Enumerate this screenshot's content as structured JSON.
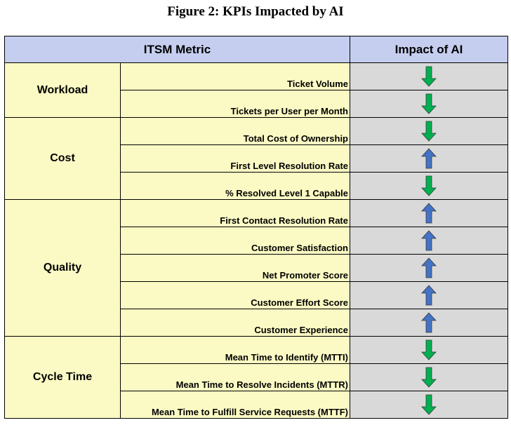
{
  "title": "Figure 2: KPIs Impacted by AI",
  "columns": {
    "metric": "ITSM Metric",
    "impact": "Impact of AI"
  },
  "groups": [
    {
      "name": "Workload",
      "rows": [
        {
          "metric": "Ticket Volume",
          "impact": "down"
        },
        {
          "metric": "Tickets per User per Month",
          "impact": "down"
        }
      ]
    },
    {
      "name": "Cost",
      "rows": [
        {
          "metric": "Total Cost of Ownership",
          "impact": "down"
        },
        {
          "metric": "First Level Resolution Rate",
          "impact": "up"
        },
        {
          "metric": "% Resolved Level 1 Capable",
          "impact": "down"
        }
      ]
    },
    {
      "name": "Quality",
      "rows": [
        {
          "metric": "First Contact Resolution Rate",
          "impact": "up"
        },
        {
          "metric": "Customer Satisfaction",
          "impact": "up"
        },
        {
          "metric": "Net Promoter Score",
          "impact": "up"
        },
        {
          "metric": "Customer Effort Score",
          "impact": "up"
        },
        {
          "metric": "Customer Experience",
          "impact": "up"
        }
      ]
    },
    {
      "name": "Cycle Time",
      "rows": [
        {
          "metric": "Mean Time to Identify (MTTI)",
          "impact": "down"
        },
        {
          "metric": "Mean Time to Resolve Incidents (MTTR)",
          "impact": "down"
        },
        {
          "metric": "Mean Time to Fulfill Service Requests (MTTF)",
          "impact": "down"
        }
      ]
    }
  ],
  "icons": {
    "up": "arrow-up-icon",
    "down": "arrow-down-icon"
  },
  "colors": {
    "up": "#4472c4",
    "down": "#00b050",
    "header_bg": "#c5ceef",
    "metric_bg": "#fcfac4",
    "impact_bg": "#d9d9d9"
  }
}
